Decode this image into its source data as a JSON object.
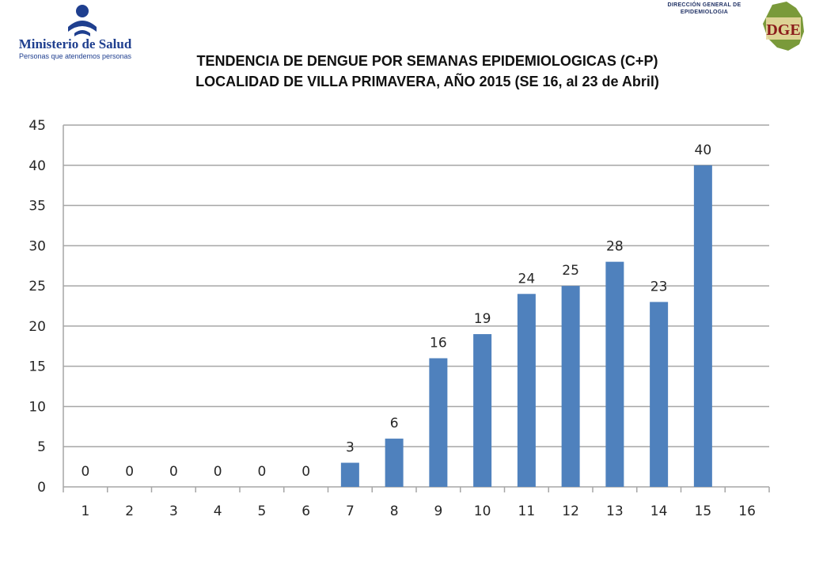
{
  "header": {
    "ministry_name": "Ministerio de Salud",
    "ministry_tagline": "Personas que atendemos personas",
    "dge_line1": "DIRECCIÓN GENERAL DE",
    "dge_line2": "EPIDEMIOLOGIA",
    "dge_logo_text": "DGE"
  },
  "colors": {
    "bar": "#4f81bd",
    "grid": "#a6a6a6",
    "brand_blue": "#1f3f8f"
  },
  "chart_data": {
    "type": "bar",
    "title_line1": "TENDENCIA DE DENGUE POR SEMANAS EPIDEMIOLOGICAS (C+P)",
    "title_line2": "LOCALIDAD DE VILLA PRIMAVERA, AÑO 2015 (SE 16, al 23 de Abril)",
    "xlabel": "",
    "ylabel": "",
    "categories": [
      "1",
      "2",
      "3",
      "4",
      "5",
      "6",
      "7",
      "8",
      "9",
      "10",
      "11",
      "12",
      "13",
      "14",
      "15",
      "16"
    ],
    "values": [
      0,
      0,
      0,
      0,
      0,
      0,
      3,
      6,
      16,
      19,
      24,
      25,
      28,
      23,
      40,
      null
    ],
    "data_labels": [
      "0",
      "0",
      "0",
      "0",
      "0",
      "0",
      "3",
      "6",
      "16",
      "19",
      "24",
      "25",
      "28",
      "23",
      "40",
      ""
    ],
    "ylim": [
      0,
      45
    ],
    "yticks": [
      0,
      5,
      10,
      15,
      20,
      25,
      30,
      35,
      40,
      45
    ],
    "grid": true,
    "legend": "none"
  }
}
